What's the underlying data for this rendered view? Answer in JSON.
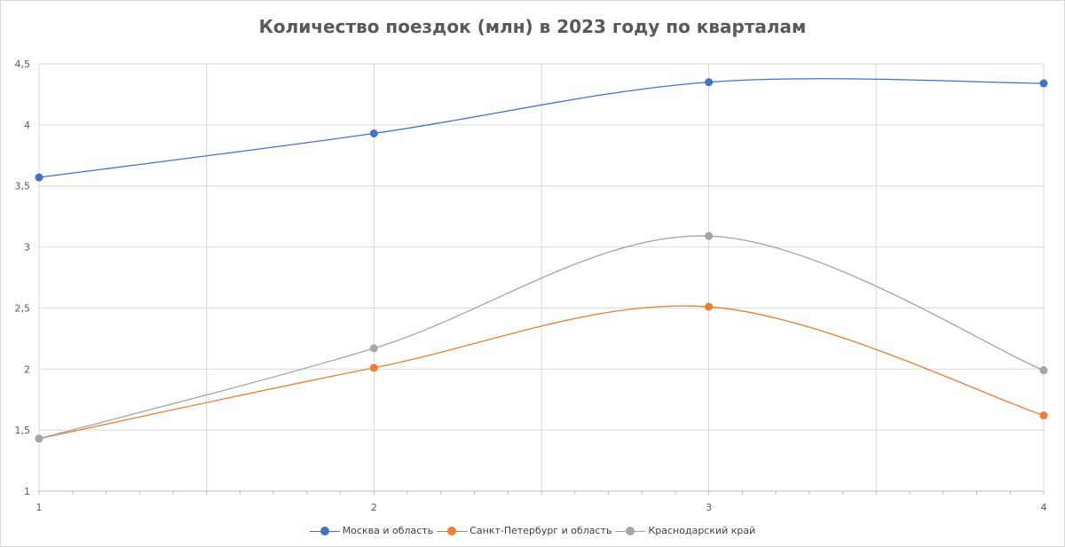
{
  "chart_data": {
    "type": "line",
    "title": "Количество поездок (млн) в 2023 году по кварталам",
    "xlabel": "",
    "ylabel": "",
    "x": [
      1,
      2,
      3,
      4
    ],
    "x_tick_labels": [
      "1",
      "2",
      "3",
      "4"
    ],
    "xlim": [
      1,
      4
    ],
    "ylim": [
      1,
      4.5
    ],
    "y_ticks": [
      1,
      1.5,
      2,
      2.5,
      3,
      3.5,
      4,
      4.5
    ],
    "y_tick_labels": [
      "1",
      "1,5",
      "2",
      "2,5",
      "3",
      "3,5",
      "4",
      "4,5"
    ],
    "grid": true,
    "smooth": true,
    "legend_position": "bottom",
    "series": [
      {
        "name": "Москва и область",
        "values": [
          3.57,
          3.93,
          4.35,
          4.34
        ],
        "color": "#4472c4"
      },
      {
        "name": "Санкт-Петербург и область",
        "values": [
          1.43,
          2.01,
          2.51,
          1.62
        ],
        "color": "#ed7d31"
      },
      {
        "name": "Краснодарский край",
        "values": [
          1.43,
          2.17,
          3.09,
          1.99
        ],
        "color": "#a5a5a5"
      }
    ]
  }
}
